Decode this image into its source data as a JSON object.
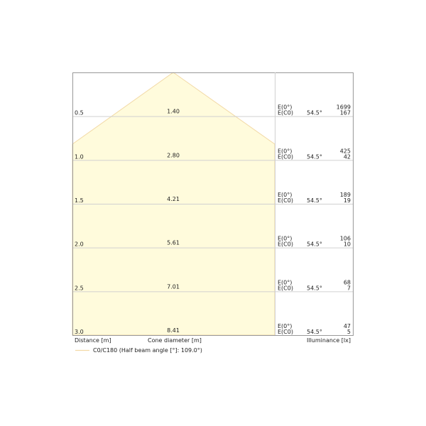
{
  "colors": {
    "cone_fill": "#fffbdc",
    "cone_stroke": "#f2d9a6",
    "grid": "#d0d0d0",
    "frame": "#999999"
  },
  "rows": [
    {
      "distance": "0.5",
      "diameter": "1.40",
      "e0_label": "E(0°)",
      "ec0_label": "E(C0)",
      "angle": "54.5°",
      "e0": "1699",
      "ec0": "167"
    },
    {
      "distance": "1.0",
      "diameter": "2.80",
      "e0_label": "E(0°)",
      "ec0_label": "E(C0)",
      "angle": "54.5°",
      "e0": "425",
      "ec0": "42"
    },
    {
      "distance": "1.5",
      "diameter": "4.21",
      "e0_label": "E(0°)",
      "ec0_label": "E(C0)",
      "angle": "54.5°",
      "e0": "189",
      "ec0": "19"
    },
    {
      "distance": "2.0",
      "diameter": "5.61",
      "e0_label": "E(0°)",
      "ec0_label": "E(C0)",
      "angle": "54.5°",
      "e0": "106",
      "ec0": "10"
    },
    {
      "distance": "2.5",
      "diameter": "7.01",
      "e0_label": "E(0°)",
      "ec0_label": "E(C0)",
      "angle": "54.5°",
      "e0": "68",
      "ec0": "7"
    },
    {
      "distance": "3.0",
      "diameter": "8.41",
      "e0_label": "E(0°)",
      "ec0_label": "E(C0)",
      "angle": "54.5°",
      "e0": "47",
      "ec0": "5"
    }
  ],
  "footer": {
    "distance_label": "Distance [m]",
    "diameter_label": "Cone diameter [m]",
    "illuminance_label": "Illuminance [lx]"
  },
  "legend": {
    "label": "C0/C180 (Half beam angle [°]: 109.0°)"
  }
}
